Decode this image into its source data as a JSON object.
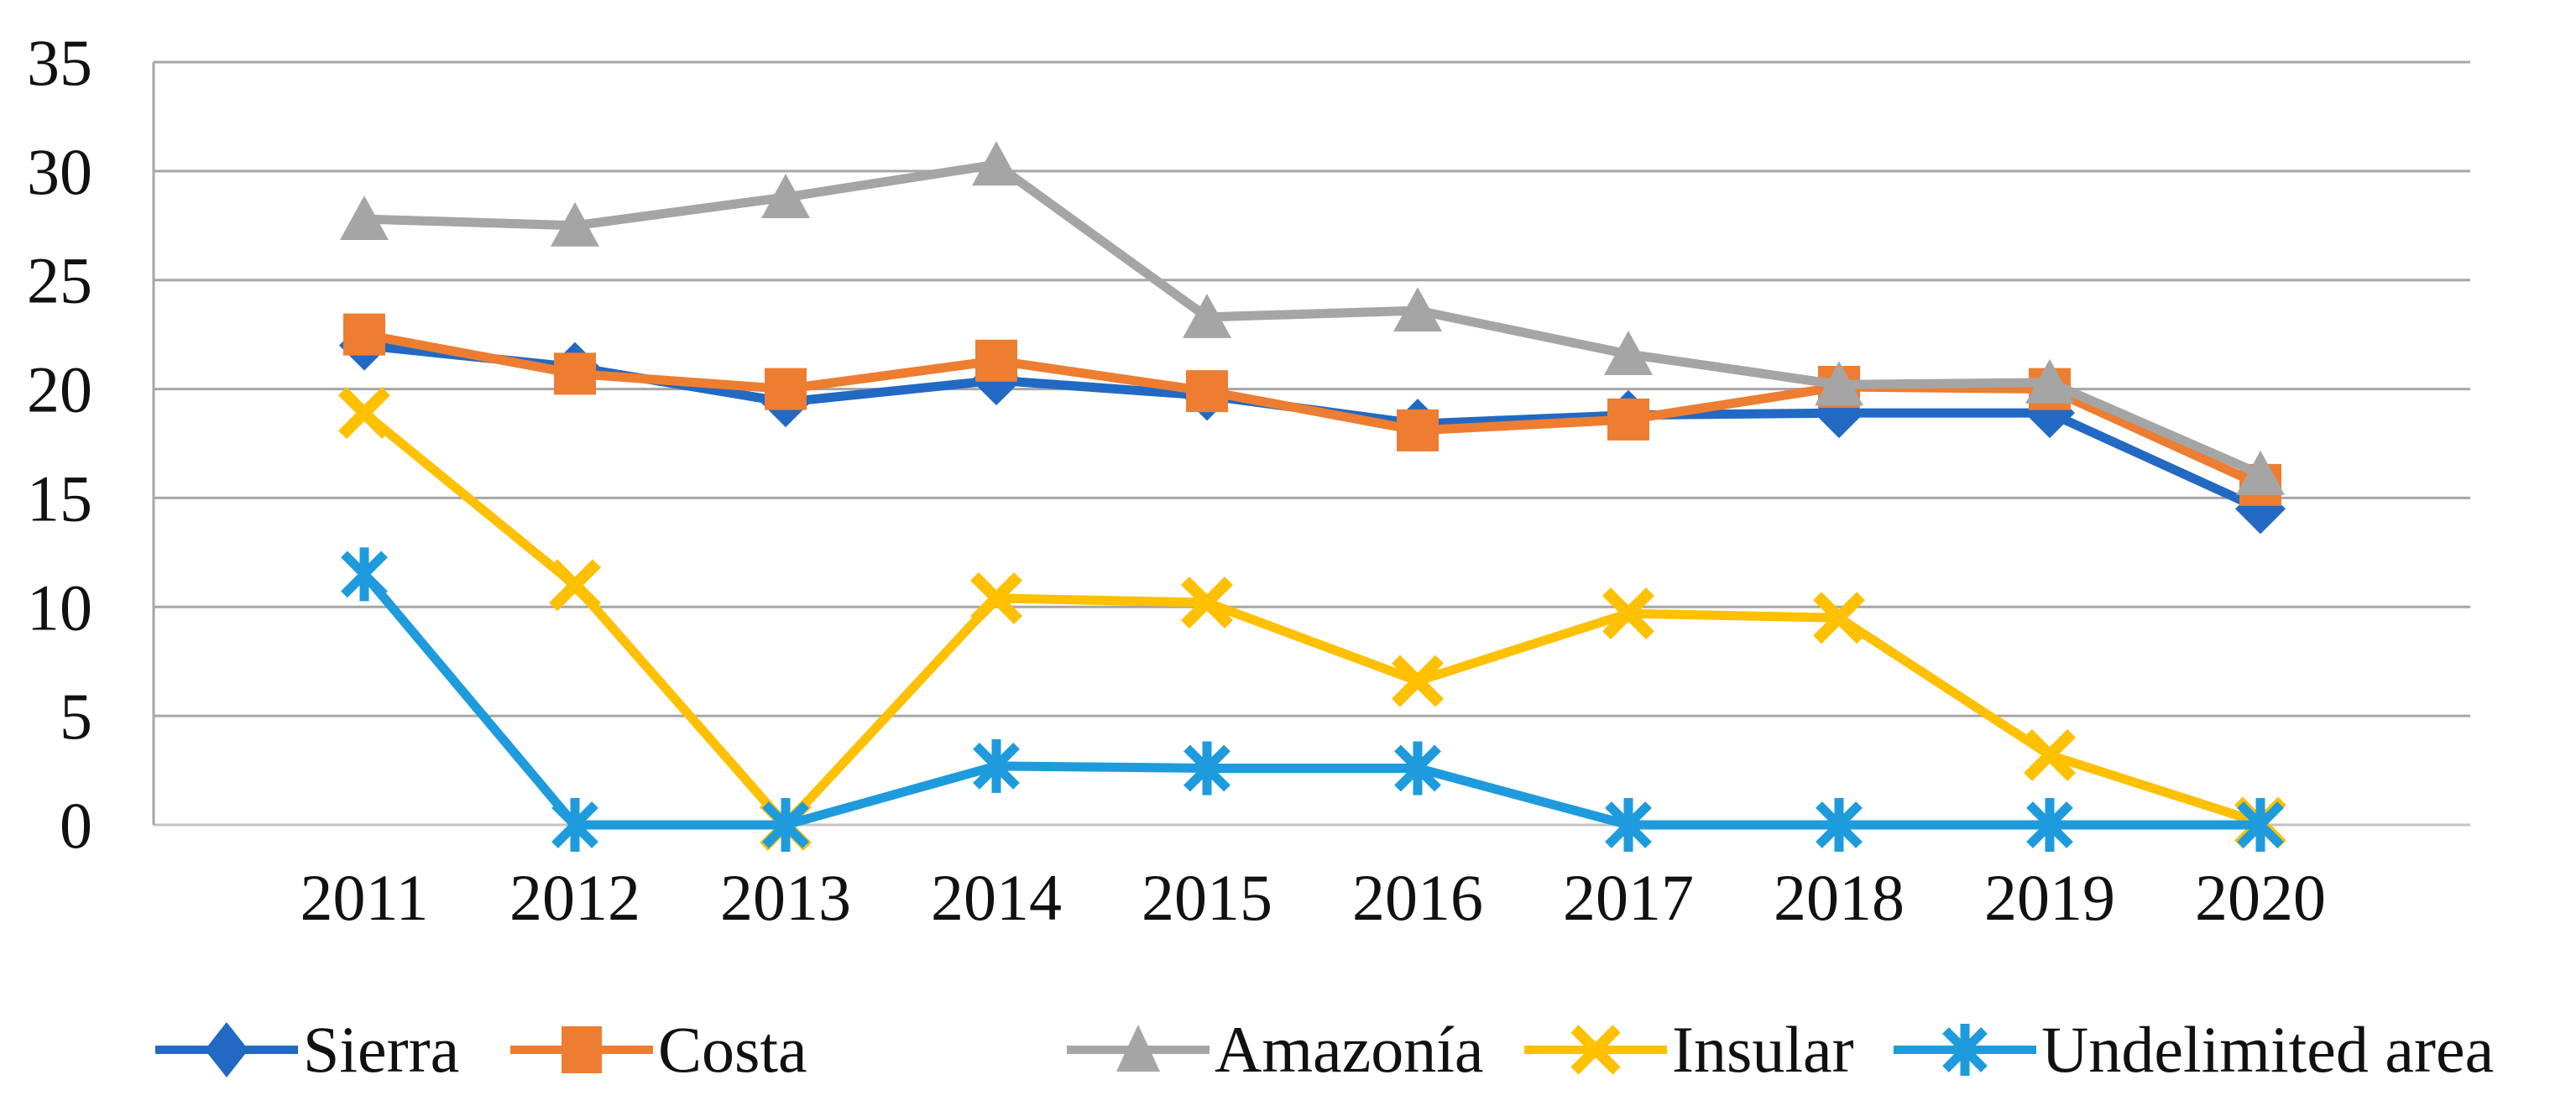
{
  "chart_data": {
    "type": "line",
    "title": "",
    "xlabel": "",
    "ylabel": "",
    "categories": [
      "2011",
      "2012",
      "2013",
      "2014",
      "2015",
      "2016",
      "2017",
      "2018",
      "2019",
      "2020"
    ],
    "series": [
      {
        "name": "Sierra",
        "color": "#2269C3",
        "marker": "diamond",
        "values": [
          22.0,
          21.0,
          19.4,
          20.4,
          19.7,
          18.4,
          18.8,
          18.9,
          18.9,
          14.5
        ]
      },
      {
        "name": "Costa",
        "color": "#ED7D31",
        "marker": "square",
        "values": [
          22.5,
          20.7,
          20.0,
          21.3,
          19.9,
          18.1,
          18.6,
          20.1,
          20.0,
          15.6
        ]
      },
      {
        "name": "Amazonía",
        "color": "#A5A5A5",
        "marker": "triangle",
        "values": [
          27.8,
          27.5,
          28.8,
          30.3,
          23.3,
          23.6,
          21.6,
          20.2,
          20.3,
          16.1
        ]
      },
      {
        "name": "Insular",
        "color": "#FFC000",
        "marker": "x",
        "values": [
          18.9,
          11.0,
          0.0,
          10.4,
          10.2,
          6.6,
          9.7,
          9.5,
          3.2,
          0.1
        ]
      },
      {
        "name": "Undelimited area",
        "color": "#1E9BDC",
        "marker": "asterisk",
        "values": [
          11.5,
          0.0,
          0.0,
          2.7,
          2.6,
          2.6,
          0.0,
          0.0,
          0.0,
          0.0
        ]
      }
    ],
    "ylim": [
      0,
      35
    ],
    "yticks": [
      0,
      5,
      10,
      15,
      20,
      25,
      30,
      35
    ],
    "grid": "horizontal",
    "gridline_color": "#A6A6A6",
    "axis_text_color": "#111111",
    "legend_position": "bottom"
  }
}
